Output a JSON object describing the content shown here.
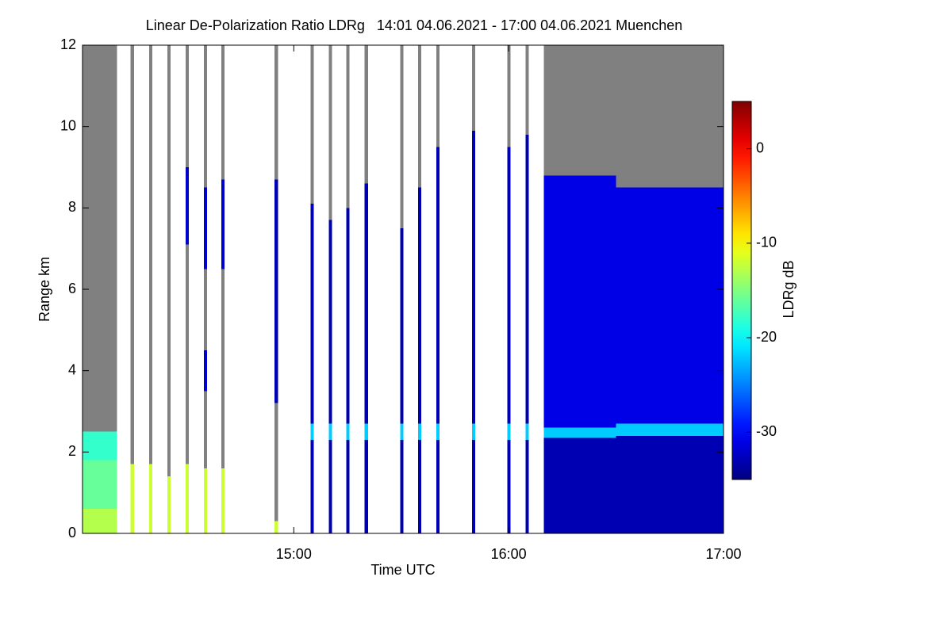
{
  "chart_data": {
    "type": "heatmap",
    "title": "Linear De-Polarization Ratio LDRg   14:01 04.06.2021 - 17:00 04.06.2021 Muenchen",
    "x_label": "Time UTC",
    "y_label": "Range km",
    "colorbar_label": "LDRg dB",
    "xlim": [
      14.0167,
      17.0
    ],
    "xticks": [
      {
        "value": 15,
        "label": "15:00"
      },
      {
        "value": 16,
        "label": "16:00"
      },
      {
        "value": 17,
        "label": "17:00"
      }
    ],
    "ylim": [
      0,
      12
    ],
    "yticks": [
      0,
      2,
      4,
      6,
      8,
      10,
      12
    ],
    "colormap": "jet",
    "clim": [
      -35,
      5
    ],
    "cticks": [
      0,
      -10,
      -20,
      -30
    ],
    "missing_color": "#808080",
    "profiles": [
      {
        "x0": 14.0167,
        "x1": 14.178,
        "layers": [
          {
            "bottom": 0,
            "top": 0.6,
            "value": -13
          },
          {
            "bottom": 0.6,
            "top": 1.8,
            "value": -16
          },
          {
            "bottom": 1.8,
            "top": 2.5,
            "value": -18
          },
          {
            "bottom": 2.5,
            "top": 12,
            "value": null
          }
        ]
      },
      {
        "x0": 14.241,
        "x1": 14.256,
        "layers": [
          {
            "bottom": 0,
            "top": 1.7,
            "value": -12
          },
          {
            "bottom": 1.7,
            "top": 12,
            "value": null
          }
        ]
      },
      {
        "x0": 14.326,
        "x1": 14.341,
        "layers": [
          {
            "bottom": 0,
            "top": 1.7,
            "value": -12
          },
          {
            "bottom": 1.7,
            "top": 12,
            "value": null
          }
        ]
      },
      {
        "x0": 14.411,
        "x1": 14.426,
        "layers": [
          {
            "bottom": 0,
            "top": 1.4,
            "value": -12
          },
          {
            "bottom": 1.4,
            "top": 12,
            "value": null
          }
        ]
      },
      {
        "x0": 14.496,
        "x1": 14.511,
        "layers": [
          {
            "bottom": 0,
            "top": 1.7,
            "value": -12
          },
          {
            "bottom": 1.7,
            "top": 7.1,
            "value": null
          },
          {
            "bottom": 7.1,
            "top": 9.0,
            "value": -32
          },
          {
            "bottom": 9.0,
            "top": 12,
            "value": null
          }
        ]
      },
      {
        "x0": 14.581,
        "x1": 14.596,
        "layers": [
          {
            "bottom": 0,
            "top": 1.6,
            "value": -12
          },
          {
            "bottom": 1.6,
            "top": 3.5,
            "value": null
          },
          {
            "bottom": 3.5,
            "top": 4.5,
            "value": -32
          },
          {
            "bottom": 4.5,
            "top": 6.5,
            "value": null
          },
          {
            "bottom": 6.5,
            "top": 8.5,
            "value": -32
          },
          {
            "bottom": 8.5,
            "top": 12,
            "value": null
          }
        ]
      },
      {
        "x0": 14.663,
        "x1": 14.678,
        "layers": [
          {
            "bottom": 0,
            "top": 1.6,
            "value": -12
          },
          {
            "bottom": 1.6,
            "top": 6.5,
            "value": null
          },
          {
            "bottom": 6.5,
            "top": 8.7,
            "value": -32
          },
          {
            "bottom": 8.7,
            "top": 12,
            "value": null
          }
        ]
      },
      {
        "x0": 14.911,
        "x1": 14.926,
        "layers": [
          {
            "bottom": 0,
            "top": 0.3,
            "value": -12
          },
          {
            "bottom": 0.3,
            "top": 3.2,
            "value": null
          },
          {
            "bottom": 3.2,
            "top": 8.7,
            "value": -33
          },
          {
            "bottom": 8.7,
            "top": 12,
            "value": null
          }
        ]
      },
      {
        "x0": 15.078,
        "x1": 15.093,
        "layers": [
          {
            "bottom": 0,
            "top": 2.3,
            "value": -33
          },
          {
            "bottom": 2.3,
            "top": 2.7,
            "value": -22
          },
          {
            "bottom": 2.7,
            "top": 8.1,
            "value": -33
          },
          {
            "bottom": 8.1,
            "top": 12,
            "value": null
          }
        ]
      },
      {
        "x0": 15.163,
        "x1": 15.178,
        "layers": [
          {
            "bottom": 0,
            "top": 2.3,
            "value": -33
          },
          {
            "bottom": 2.3,
            "top": 2.7,
            "value": -22
          },
          {
            "bottom": 2.7,
            "top": 7.7,
            "value": -33
          },
          {
            "bottom": 7.7,
            "top": 12,
            "value": null
          }
        ]
      },
      {
        "x0": 15.244,
        "x1": 15.259,
        "layers": [
          {
            "bottom": 0,
            "top": 2.3,
            "value": -33
          },
          {
            "bottom": 2.3,
            "top": 2.7,
            "value": -22
          },
          {
            "bottom": 2.7,
            "top": 8.0,
            "value": -33
          },
          {
            "bottom": 8.0,
            "top": 12,
            "value": null
          }
        ]
      },
      {
        "x0": 15.33,
        "x1": 15.345,
        "layers": [
          {
            "bottom": 0,
            "top": 2.3,
            "value": -33
          },
          {
            "bottom": 2.3,
            "top": 2.7,
            "value": -22
          },
          {
            "bottom": 2.7,
            "top": 8.6,
            "value": -33
          },
          {
            "bottom": 8.6,
            "top": 12,
            "value": null
          }
        ]
      },
      {
        "x0": 15.496,
        "x1": 15.511,
        "layers": [
          {
            "bottom": 0,
            "top": 2.3,
            "value": -33
          },
          {
            "bottom": 2.3,
            "top": 2.7,
            "value": -22
          },
          {
            "bottom": 2.7,
            "top": 7.5,
            "value": -33
          },
          {
            "bottom": 7.5,
            "top": 12,
            "value": null
          }
        ]
      },
      {
        "x0": 15.578,
        "x1": 15.593,
        "layers": [
          {
            "bottom": 0,
            "top": 2.3,
            "value": -33
          },
          {
            "bottom": 2.3,
            "top": 2.7,
            "value": -22
          },
          {
            "bottom": 2.7,
            "top": 8.5,
            "value": -33
          },
          {
            "bottom": 8.5,
            "top": 12,
            "value": null
          }
        ]
      },
      {
        "x0": 15.663,
        "x1": 15.678,
        "layers": [
          {
            "bottom": 0,
            "top": 2.3,
            "value": -33
          },
          {
            "bottom": 2.3,
            "top": 2.7,
            "value": -22
          },
          {
            "bottom": 2.7,
            "top": 9.5,
            "value": -33
          },
          {
            "bottom": 9.5,
            "top": 12,
            "value": null
          }
        ]
      },
      {
        "x0": 15.83,
        "x1": 15.845,
        "layers": [
          {
            "bottom": 0,
            "top": 2.3,
            "value": -33
          },
          {
            "bottom": 2.3,
            "top": 2.7,
            "value": -22
          },
          {
            "bottom": 2.7,
            "top": 9.9,
            "value": -33
          },
          {
            "bottom": 9.9,
            "top": 12,
            "value": null
          }
        ]
      },
      {
        "x0": 15.993,
        "x1": 16.008,
        "layers": [
          {
            "bottom": 0,
            "top": 2.3,
            "value": -33
          },
          {
            "bottom": 2.3,
            "top": 2.7,
            "value": -22
          },
          {
            "bottom": 2.7,
            "top": 9.5,
            "value": -33
          },
          {
            "bottom": 9.5,
            "top": 12,
            "value": null
          }
        ]
      },
      {
        "x0": 16.078,
        "x1": 16.093,
        "layers": [
          {
            "bottom": 0,
            "top": 2.3,
            "value": -33
          },
          {
            "bottom": 2.3,
            "top": 2.7,
            "value": -22
          },
          {
            "bottom": 2.7,
            "top": 9.8,
            "value": -33
          },
          {
            "bottom": 9.8,
            "top": 12,
            "value": null
          }
        ]
      },
      {
        "x0": 16.163,
        "x1": 16.5,
        "layers": [
          {
            "bottom": 0,
            "top": 2.35,
            "value": -33
          },
          {
            "bottom": 2.35,
            "top": 2.6,
            "value": -22
          },
          {
            "bottom": 2.6,
            "top": 8.8,
            "value": -31
          },
          {
            "bottom": 8.8,
            "top": 12,
            "value": null
          }
        ]
      },
      {
        "x0": 16.5,
        "x1": 17.0,
        "layers": [
          {
            "bottom": 0,
            "top": 2.4,
            "value": -33
          },
          {
            "bottom": 2.4,
            "top": 2.7,
            "value": -22
          },
          {
            "bottom": 2.7,
            "top": 8.5,
            "value": -31
          },
          {
            "bottom": 8.5,
            "top": 12,
            "value": null
          }
        ]
      }
    ]
  }
}
